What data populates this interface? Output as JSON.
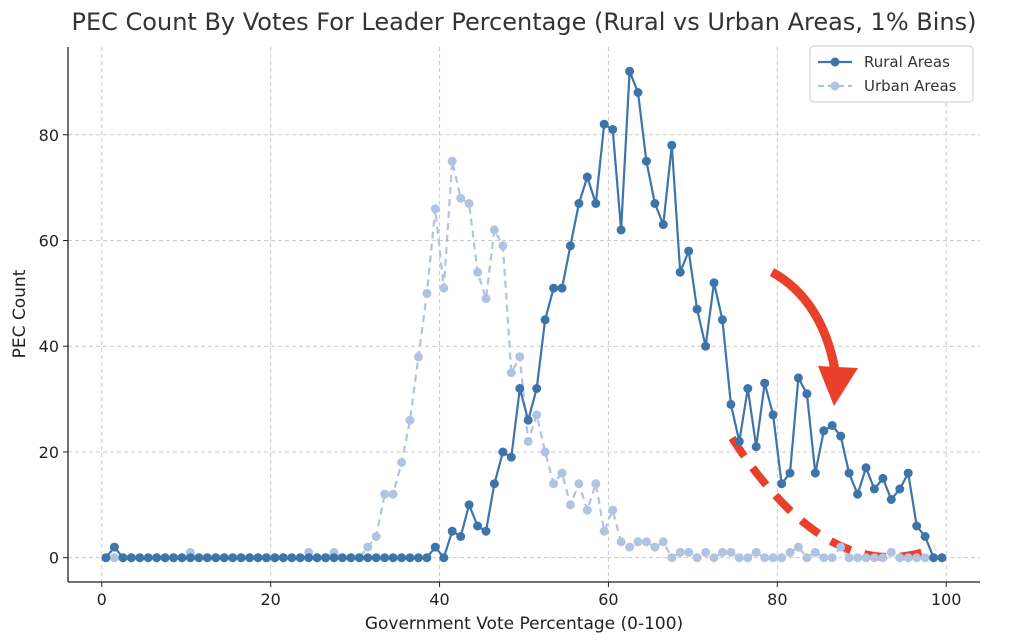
{
  "chart_data": {
    "type": "line",
    "title": "PEC Count By Votes For Leader Percentage (Rural vs Urban Areas, 1% Bins)",
    "xlabel": "Government Vote Percentage (0-100)",
    "ylabel": "PEC Count",
    "xlim": [
      -4,
      104
    ],
    "ylim": [
      -4.6,
      96.6
    ],
    "xticks": [
      0,
      20,
      40,
      60,
      80,
      100
    ],
    "yticks": [
      0,
      20,
      40,
      60,
      80
    ],
    "grid": true,
    "legend_position": "top-right",
    "x": [
      0.5,
      1.5,
      2.5,
      3.5,
      4.5,
      5.5,
      6.5,
      7.5,
      8.5,
      9.5,
      10.5,
      11.5,
      12.5,
      13.5,
      14.5,
      15.5,
      16.5,
      17.5,
      18.5,
      19.5,
      20.5,
      21.5,
      22.5,
      23.5,
      24.5,
      25.5,
      26.5,
      27.5,
      28.5,
      29.5,
      30.5,
      31.5,
      32.5,
      33.5,
      34.5,
      35.5,
      36.5,
      37.5,
      38.5,
      39.5,
      40.5,
      41.5,
      42.5,
      43.5,
      44.5,
      45.5,
      46.5,
      47.5,
      48.5,
      49.5,
      50.5,
      51.5,
      52.5,
      53.5,
      54.5,
      55.5,
      56.5,
      57.5,
      58.5,
      59.5,
      60.5,
      61.5,
      62.5,
      63.5,
      64.5,
      65.5,
      66.5,
      67.5,
      68.5,
      69.5,
      70.5,
      71.5,
      72.5,
      73.5,
      74.5,
      75.5,
      76.5,
      77.5,
      78.5,
      79.5,
      80.5,
      81.5,
      82.5,
      83.5,
      84.5,
      85.5,
      86.5,
      87.5,
      88.5,
      89.5,
      90.5,
      91.5,
      92.5,
      93.5,
      94.5,
      95.5,
      96.5,
      97.5,
      98.5,
      99.5
    ],
    "series": [
      {
        "name": "Rural Areas",
        "color": "#3d75ab",
        "style": "solid",
        "values": [
          0,
          2,
          0,
          0,
          0,
          0,
          0,
          0,
          0,
          0,
          0,
          0,
          0,
          0,
          0,
          0,
          0,
          0,
          0,
          0,
          0,
          0,
          0,
          0,
          0,
          0,
          0,
          0,
          0,
          0,
          0,
          0,
          0,
          0,
          0,
          0,
          0,
          0,
          0,
          2,
          0,
          5,
          4,
          10,
          6,
          5,
          14,
          20,
          19,
          32,
          26,
          32,
          45,
          51,
          51,
          59,
          67,
          72,
          67,
          82,
          81,
          62,
          92,
          88,
          75,
          67,
          63,
          78,
          54,
          58,
          47,
          40,
          52,
          45,
          29,
          22,
          32,
          21,
          33,
          27,
          14,
          16,
          34,
          31,
          16,
          24,
          25,
          23,
          16,
          12,
          17,
          13,
          15,
          11,
          13,
          16,
          6,
          4,
          0,
          0
        ]
      },
      {
        "name": "Urban Areas",
        "color": "#b0c4e1",
        "style": "dashed",
        "values": [
          0,
          0,
          0,
          0,
          0,
          0,
          0,
          0,
          0,
          0,
          1,
          0,
          0,
          0,
          0,
          0,
          0,
          0,
          0,
          0,
          0,
          0,
          0,
          0,
          1,
          0,
          0,
          1,
          0,
          0,
          0,
          2,
          4,
          12,
          12,
          18,
          26,
          38,
          50,
          66,
          51,
          75,
          68,
          67,
          54,
          49,
          62,
          59,
          35,
          38,
          22,
          27,
          20,
          14,
          16,
          10,
          14,
          9,
          14,
          5,
          9,
          3,
          2,
          3,
          3,
          2,
          3,
          0,
          1,
          1,
          0,
          1,
          0,
          1,
          1,
          0,
          0,
          1,
          0,
          0,
          0,
          1,
          2,
          0,
          1,
          0,
          0,
          2,
          0,
          0,
          0,
          0,
          0,
          1,
          0,
          0,
          0,
          0,
          0,
          0
        ]
      }
    ]
  }
}
